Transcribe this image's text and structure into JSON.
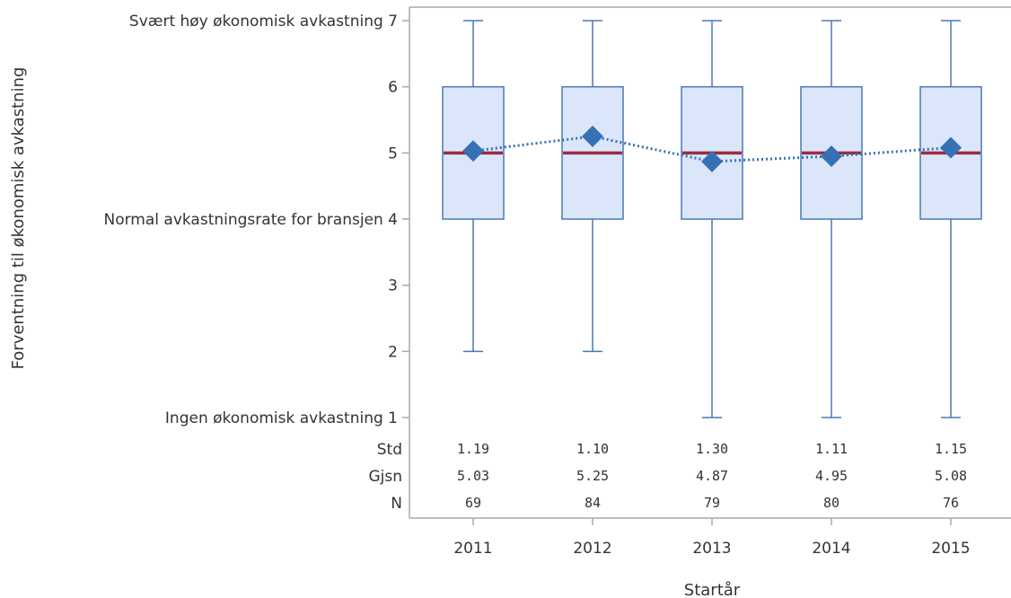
{
  "chart_data": {
    "type": "box",
    "xlabel": "Startår",
    "ylabel": "Forventning til økonomisk avkastning",
    "ylim": [
      1,
      7
    ],
    "yticks": [
      1,
      2,
      3,
      4,
      5,
      6,
      7
    ],
    "ytick_labels": {
      "1": "Ingen økonomisk avkastning 1",
      "2": "2",
      "3": "3",
      "4": "Normal avkastningsrate for bransjen 4",
      "5": "5",
      "6": "6",
      "7": "Svært høy økonomisk avkastning 7"
    },
    "categories": [
      "2011",
      "2012",
      "2013",
      "2014",
      "2015"
    ],
    "boxes": [
      {
        "min": 2,
        "q1": 4,
        "median": 5,
        "q3": 6,
        "max": 7,
        "mean": 5.03
      },
      {
        "min": 2,
        "q1": 4,
        "median": 5,
        "q3": 6,
        "max": 7,
        "mean": 5.25
      },
      {
        "min": 1,
        "q1": 4,
        "median": 5,
        "q3": 6,
        "max": 7,
        "mean": 4.87
      },
      {
        "min": 1,
        "q1": 4,
        "median": 5,
        "q3": 6,
        "max": 7,
        "mean": 4.95
      },
      {
        "min": 1,
        "q1": 4,
        "median": 5,
        "q3": 6,
        "max": 7,
        "mean": 5.08
      }
    ],
    "stats_table": {
      "rows": [
        {
          "label": "Std",
          "values": [
            "1.19",
            "1.10",
            "1.30",
            "1.11",
            "1.15"
          ]
        },
        {
          "label": "Gjsn",
          "values": [
            "5.03",
            "5.25",
            "4.87",
            "4.95",
            "5.08"
          ]
        },
        {
          "label": "N",
          "values": [
            "69",
            "84",
            "79",
            "80",
            "76"
          ]
        }
      ]
    },
    "colors": {
      "box_fill": "#dbe6fb",
      "box_stroke": "#4a78b4",
      "median": "#9b2d3f",
      "mean_marker": "#3671b5",
      "mean_line": "#3671b5",
      "frame": "#a9a9a9",
      "text": "#333333"
    }
  }
}
